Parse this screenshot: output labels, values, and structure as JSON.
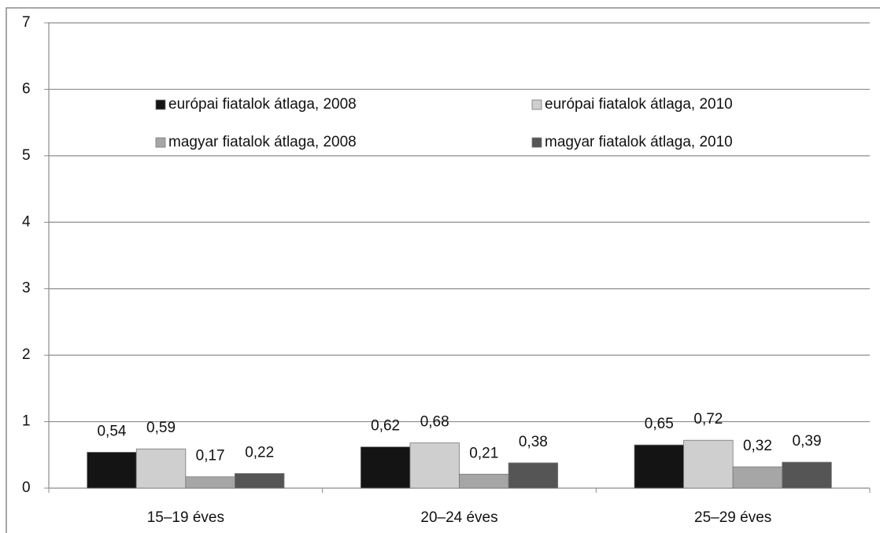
{
  "chart_data": {
    "type": "bar",
    "categories": [
      "15–19 éves",
      "20–24 éves",
      "25–29 éves"
    ],
    "series": [
      {
        "name": "európai fiatalok átlaga, 2008",
        "color": "#141414",
        "values": [
          0.54,
          0.62,
          0.65
        ],
        "value_labels": [
          "0,54",
          "0,62",
          "0,65"
        ]
      },
      {
        "name": "európai fiatalok átlaga, 2010",
        "color": "#cfcfcf",
        "values": [
          0.59,
          0.68,
          0.72
        ],
        "value_labels": [
          "0,59",
          "0,68",
          "0,72"
        ]
      },
      {
        "name": "magyar fiatalok átlaga, 2008",
        "color": "#a6a6a6",
        "values": [
          0.17,
          0.21,
          0.32
        ],
        "value_labels": [
          "0,17",
          "0,21",
          "0,32"
        ]
      },
      {
        "name": "magyar fiatalok átlaga, 2010",
        "color": "#555555",
        "values": [
          0.22,
          0.38,
          0.39
        ],
        "value_labels": [
          "0,22",
          "0,38",
          "0,39"
        ]
      }
    ],
    "ylim": [
      0,
      7
    ],
    "yticks": [
      0,
      1,
      2,
      3,
      4,
      5,
      6,
      7
    ],
    "grid": true,
    "legend": "top"
  }
}
